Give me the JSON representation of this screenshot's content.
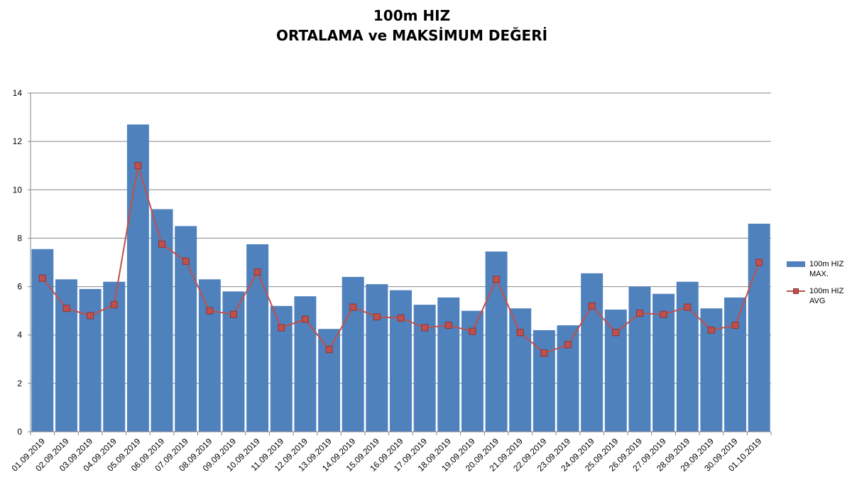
{
  "title": {
    "line1": "100m HIZ",
    "line2": "ORTALAMA ve MAKSİMUM DEĞERİ"
  },
  "colors": {
    "bar": "#4f81bd",
    "line": "#c0504d",
    "marker_border": "#8c3836",
    "grid": "#868686",
    "axis": "#868686"
  },
  "chart_data": {
    "type": "bar",
    "title": "100m HIZ ORTALAMA ve MAKSİMUM DEĞERİ",
    "xlabel": "",
    "ylabel": "",
    "ylim": [
      0,
      14
    ],
    "yticks": [
      0,
      2,
      4,
      6,
      8,
      10,
      12,
      14
    ],
    "grid": true,
    "legend_position": "right",
    "categories": [
      "01.09.2019",
      "02.09.2019",
      "03.09.2019",
      "04.09.2019",
      "05.09.2019",
      "06.09.2019",
      "07.09.2019",
      "08.09.2019",
      "09.09.2019",
      "10.09.2019",
      "11.09.2019",
      "12.09.2019",
      "13.09.2019",
      "14.09.2019",
      "15.09.2019",
      "16.09.2019",
      "17.09.2019",
      "18.09.2019",
      "19.09.2019",
      "20.09.2019",
      "21.09.2019",
      "22.09.2019",
      "23.09.2019",
      "24.09.2019",
      "25.09.2019",
      "26.09.2019",
      "27.09.2019",
      "28.09.2019",
      "29.09.2019",
      "30.09.2019",
      "01.10.2019"
    ],
    "series": [
      {
        "name": "100m HIZ MAX.",
        "type": "bar",
        "values": [
          7.55,
          6.3,
          5.9,
          6.2,
          12.7,
          9.2,
          8.5,
          6.3,
          5.8,
          7.75,
          5.2,
          5.6,
          4.25,
          6.4,
          6.1,
          5.85,
          5.25,
          5.55,
          5.0,
          7.45,
          5.1,
          4.2,
          4.4,
          6.55,
          5.05,
          6.0,
          5.7,
          6.2,
          5.1,
          5.55,
          8.6
        ]
      },
      {
        "name": "100m HIZ AVG",
        "type": "line",
        "values": [
          6.35,
          5.1,
          4.8,
          5.25,
          11.0,
          7.75,
          7.05,
          5.0,
          4.85,
          6.6,
          4.3,
          4.65,
          3.4,
          5.15,
          4.75,
          4.7,
          4.3,
          4.4,
          4.15,
          6.3,
          4.1,
          3.25,
          3.6,
          5.2,
          4.1,
          4.9,
          4.85,
          5.15,
          4.2,
          4.4,
          7.0
        ]
      }
    ]
  },
  "legend": {
    "bar_label": "100m HIZ MAX.",
    "line_label": "100m HIZ AVG"
  }
}
